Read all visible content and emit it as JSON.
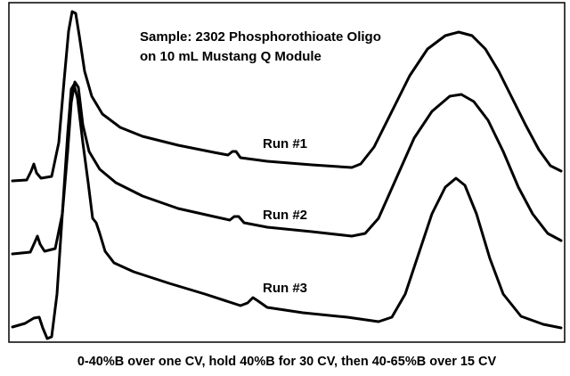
{
  "annotation": {
    "lines": [
      "Sample: 2302 Phosphorothioate Oligo",
      "on 10 mL Mustang Q Module"
    ]
  },
  "traces": [
    {
      "label": "Run #1"
    },
    {
      "label": "Run #2"
    },
    {
      "label": "Run #3"
    }
  ],
  "caption": "0-40%B over one CV, hold 40%B for 30 CV, then 40-65%B over 15 CV"
}
